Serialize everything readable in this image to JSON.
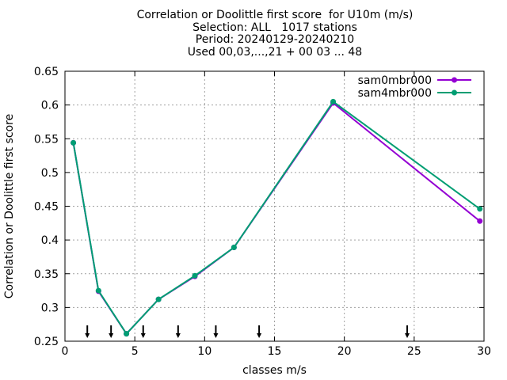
{
  "chart_data": {
    "type": "line",
    "title_lines": [
      "Correlation or Doolittle first score  for U10m (m/s)",
      "Selection: ALL   1017 stations",
      "Period: 20240129-20240210",
      "Used 00,03,...,21 + 00 03 ... 48"
    ],
    "xlabel": "classes m/s",
    "ylabel": "Correlation or Doolittle first score",
    "xlim": [
      0,
      30
    ],
    "ylim": [
      0.25,
      0.65
    ],
    "x_ticks": [
      0,
      5,
      10,
      15,
      20,
      25,
      30
    ],
    "y_ticks": [
      0.25,
      0.3,
      0.35,
      0.4,
      0.45,
      0.5,
      0.55,
      0.6,
      0.65
    ],
    "y_tick_labels": [
      "0.25",
      "0.3",
      "0.35",
      "0.4",
      "0.45",
      "0.5",
      "0.55",
      "0.6",
      "0.65"
    ],
    "grid": true,
    "legend_position": "top-right",
    "series": [
      {
        "name": "sam0mbr000",
        "color": "#9400d3",
        "x": [
          0.6,
          2.4,
          4.4,
          6.7,
          9.3,
          12.1,
          19.2,
          29.7
        ],
        "y": [
          0.544,
          0.324,
          0.261,
          0.312,
          0.346,
          0.389,
          0.603,
          0.428
        ]
      },
      {
        "name": "sam4mbr000",
        "color": "#009e73",
        "x": [
          0.6,
          2.4,
          4.4,
          6.7,
          9.3,
          12.1,
          19.2,
          29.7
        ],
        "y": [
          0.544,
          0.325,
          0.261,
          0.312,
          0.347,
          0.389,
          0.605,
          0.446
        ]
      }
    ],
    "arrow_markers_x": [
      1.6,
      3.3,
      5.6,
      8.1,
      10.8,
      13.9,
      24.5
    ]
  }
}
